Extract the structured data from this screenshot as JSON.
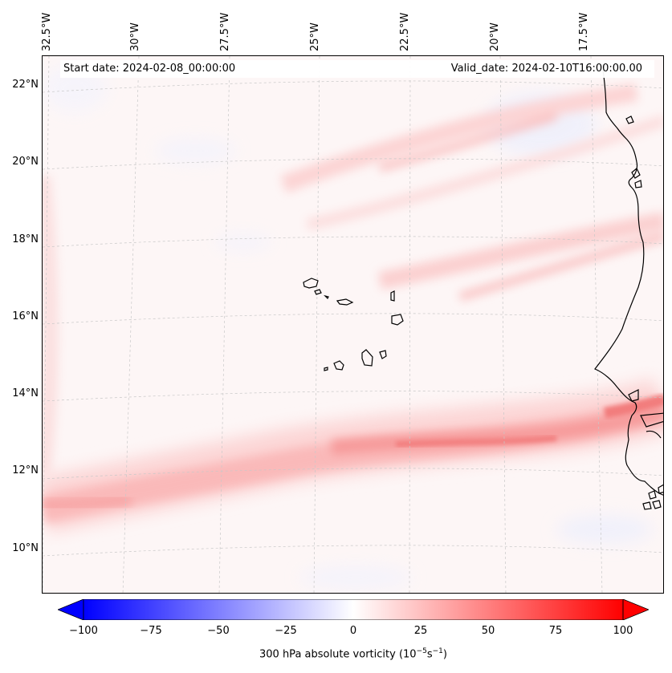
{
  "map": {
    "start_date": "Start date: 2024-02-08_00:00:00",
    "valid_date": "Valid_date: 2024-02-10T16:00:00.00",
    "longitude_labels": [
      "32.5°W",
      "30°W",
      "27.5°W",
      "25°W",
      "22.5°W",
      "20°W",
      "17.5°W"
    ],
    "latitude_labels": [
      "22°N",
      "20°N",
      "18°N",
      "16°N",
      "14°N",
      "12°N",
      "10°N"
    ],
    "field": "300 hPa absolute vorticity",
    "colors": {
      "negative": "#0000ff",
      "neutral": "#ffffff",
      "positive": "#ff0000",
      "coast": "#000000",
      "grid": "#b0b0b0"
    }
  },
  "colorbar": {
    "ticks": [
      "−100",
      "−75",
      "−50",
      "−25",
      "0",
      "25",
      "50",
      "75",
      "100"
    ],
    "tick_values": [
      -100,
      -75,
      -50,
      -25,
      0,
      25,
      50,
      75,
      100
    ],
    "label_prefix": "300 hPa absolute vorticity (10",
    "label_exp1": "−5",
    "label_mid": "s",
    "label_exp2": "−1",
    "label_suffix": ")"
  }
}
